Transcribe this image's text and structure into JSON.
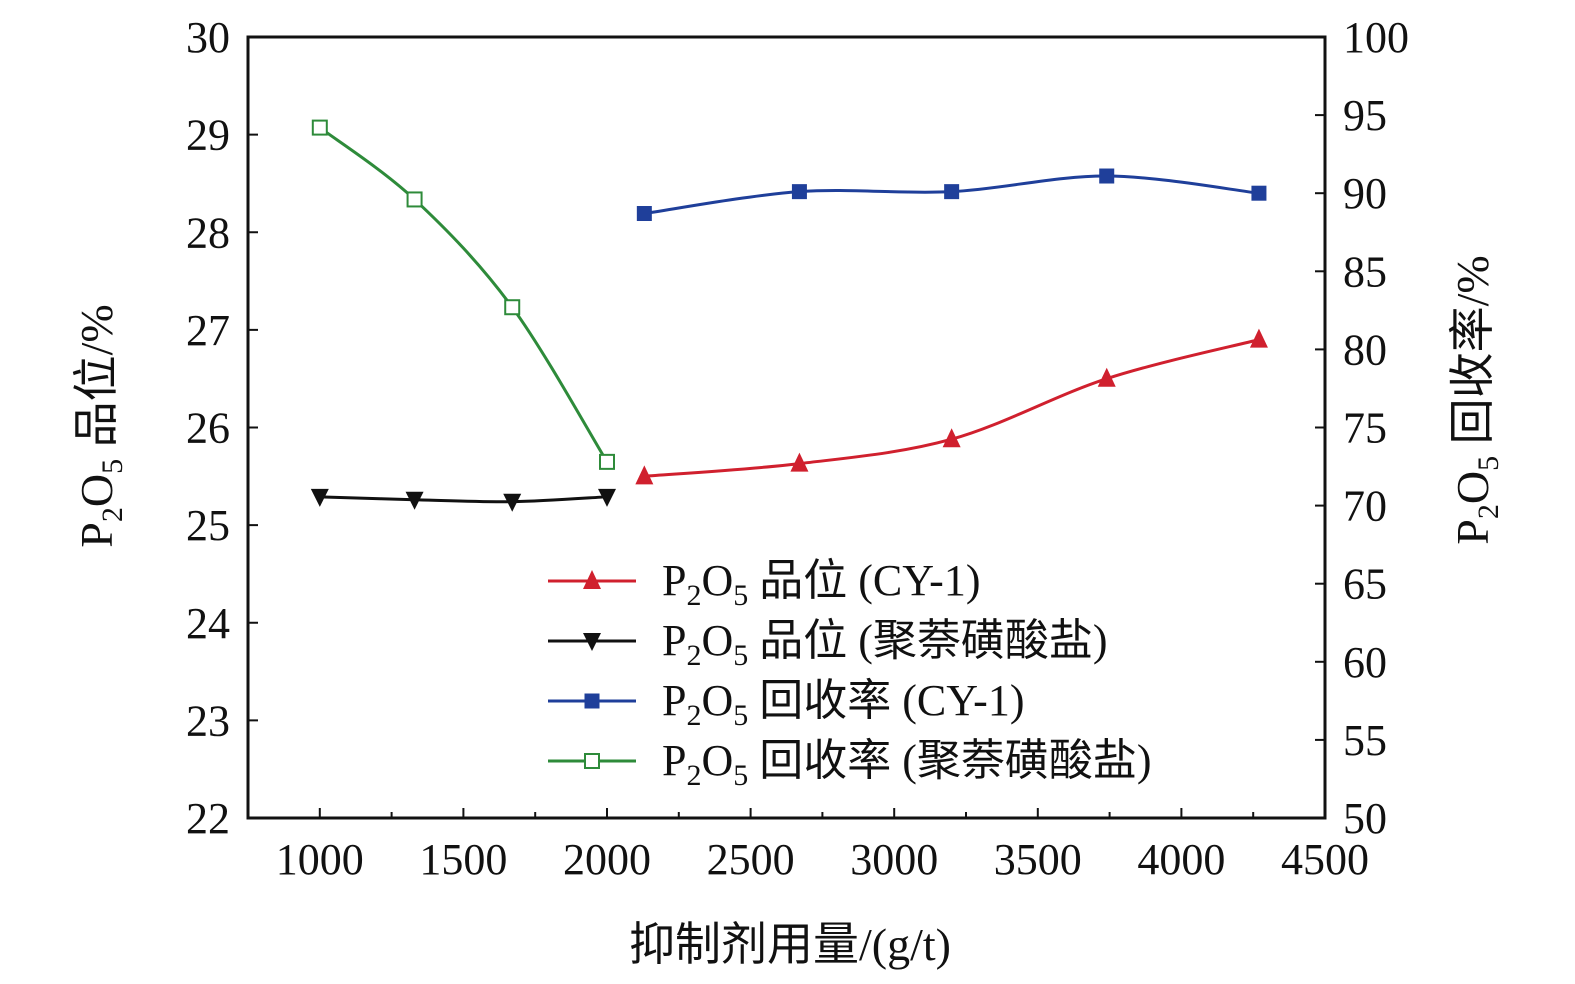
{
  "chart_data": {
    "type": "line",
    "xlabel": "抑制剂用量/(g/t)",
    "ylabel_left": {
      "prefix": "P",
      "sub1": "2",
      "mid": "O",
      "sub2": "5",
      "suffix": " 品位/%"
    },
    "ylabel_right": {
      "prefix": "P",
      "sub1": "2",
      "mid": "O",
      "sub2": "5",
      "suffix": " 回收率/%"
    },
    "xlim": [
      750,
      4500
    ],
    "xticks": [
      1000,
      1500,
      2000,
      2500,
      3000,
      3500,
      4000,
      4500
    ],
    "ylim_left": [
      22,
      30
    ],
    "yticks_left": [
      22,
      23,
      24,
      25,
      26,
      27,
      28,
      29,
      30
    ],
    "ylim_right": [
      50,
      100
    ],
    "yticks_right": [
      50,
      55,
      60,
      65,
      70,
      75,
      80,
      85,
      90,
      95,
      100
    ],
    "legend_position": "bottom-right",
    "grid": false,
    "series": [
      {
        "name": "品位 (CY-1)",
        "axis": "left",
        "color": "#d0202e",
        "marker": "triangle-up",
        "x": [
          2130,
          2670,
          3200,
          3740,
          4270
        ],
        "y": [
          25.5,
          25.63,
          25.88,
          26.5,
          26.9
        ]
      },
      {
        "name": "品位 (聚萘磺酸盐)",
        "axis": "left",
        "color": "#111111",
        "marker": "triangle-down",
        "x": [
          1000,
          1330,
          1670,
          2000
        ],
        "y": [
          25.29,
          25.26,
          25.24,
          25.29
        ]
      },
      {
        "name": "回收率 (CY-1)",
        "axis": "right",
        "color": "#1f3f9a",
        "marker": "square-filled",
        "x": [
          2130,
          2670,
          3200,
          3740,
          4270
        ],
        "y": [
          88.7,
          90.1,
          90.1,
          91.1,
          90.0
        ]
      },
      {
        "name": "回收率 (聚萘磺酸盐)",
        "axis": "right",
        "color": "#2e8b3a",
        "marker": "square-open",
        "x": [
          1000,
          1330,
          1670,
          2000
        ],
        "y": [
          94.2,
          89.6,
          82.7,
          72.8
        ]
      }
    ],
    "legend_prefix": {
      "p": "P",
      "sub1": "2",
      "o": "O",
      "sub2": "5"
    }
  }
}
